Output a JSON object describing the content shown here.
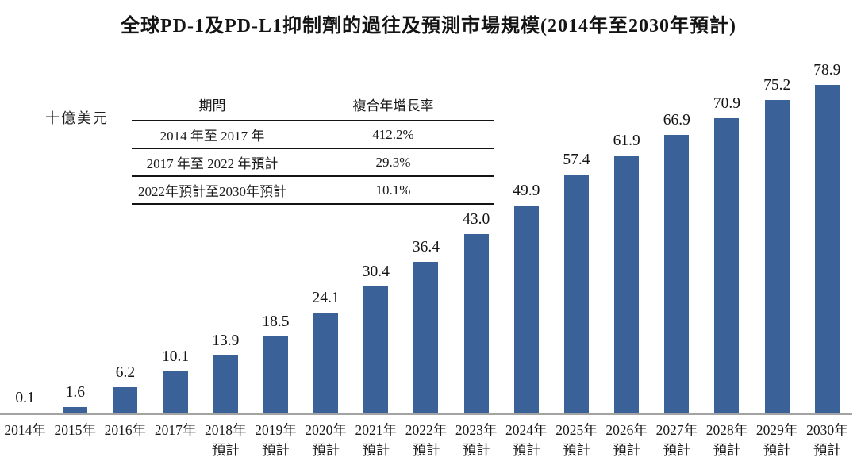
{
  "title": "全球PD-1及PD-L1抑制劑的過往及預測市場規模(2014年至2030年預計)",
  "unit_label": "十億美元",
  "colors": {
    "bar": "#3a6298",
    "axis_line": "#a3a3a3",
    "text": "#141414"
  },
  "cagr_table": {
    "headers": {
      "period": "期間",
      "cagr": "複合年增長率"
    },
    "rows": [
      {
        "period": "2014 年至 2017 年",
        "cagr": "412.2%"
      },
      {
        "period": "2017 年至 2022 年預計",
        "cagr": "29.3%"
      },
      {
        "period": "2022年預計至2030年預計",
        "cagr": "10.1%"
      }
    ]
  },
  "chart_data": {
    "type": "bar",
    "title": "全球PD-1及PD-L1抑制劑的過往及預測市場規模(2014年至2030年預計)",
    "ylabel": "十億美元",
    "xlabel": "",
    "ylim": [
      0,
      80
    ],
    "grid": false,
    "legend": "none",
    "bar_color": "#3a6298",
    "categories": [
      {
        "line1": "2014年",
        "line2": ""
      },
      {
        "line1": "2015年",
        "line2": ""
      },
      {
        "line1": "2016年",
        "line2": ""
      },
      {
        "line1": "2017年",
        "line2": ""
      },
      {
        "line1": "2018年",
        "line2": "預計"
      },
      {
        "line1": "2019年",
        "line2": "預計"
      },
      {
        "line1": "2020年",
        "line2": "預計"
      },
      {
        "line1": "2021年",
        "line2": "預計"
      },
      {
        "line1": "2022年",
        "line2": "預計"
      },
      {
        "line1": "2023年",
        "line2": "預計"
      },
      {
        "line1": "2024年",
        "line2": "預計"
      },
      {
        "line1": "2025年",
        "line2": "預計"
      },
      {
        "line1": "2026年",
        "line2": "預計"
      },
      {
        "line1": "2027年",
        "line2": "預計"
      },
      {
        "line1": "2028年",
        "line2": "預計"
      },
      {
        "line1": "2029年",
        "line2": "預計"
      },
      {
        "line1": "2030年",
        "line2": "預計"
      }
    ],
    "values": [
      0.1,
      1.6,
      6.2,
      10.1,
      13.9,
      18.5,
      24.1,
      30.4,
      36.4,
      43.0,
      49.9,
      57.4,
      61.9,
      66.9,
      70.9,
      75.2,
      78.9
    ],
    "value_labels": [
      "0.1",
      "1.6",
      "6.2",
      "10.1",
      "13.9",
      "18.5",
      "24.1",
      "30.4",
      "36.4",
      "43.0",
      "49.9",
      "57.4",
      "61.9",
      "66.9",
      "70.9",
      "75.2",
      "78.9"
    ]
  }
}
